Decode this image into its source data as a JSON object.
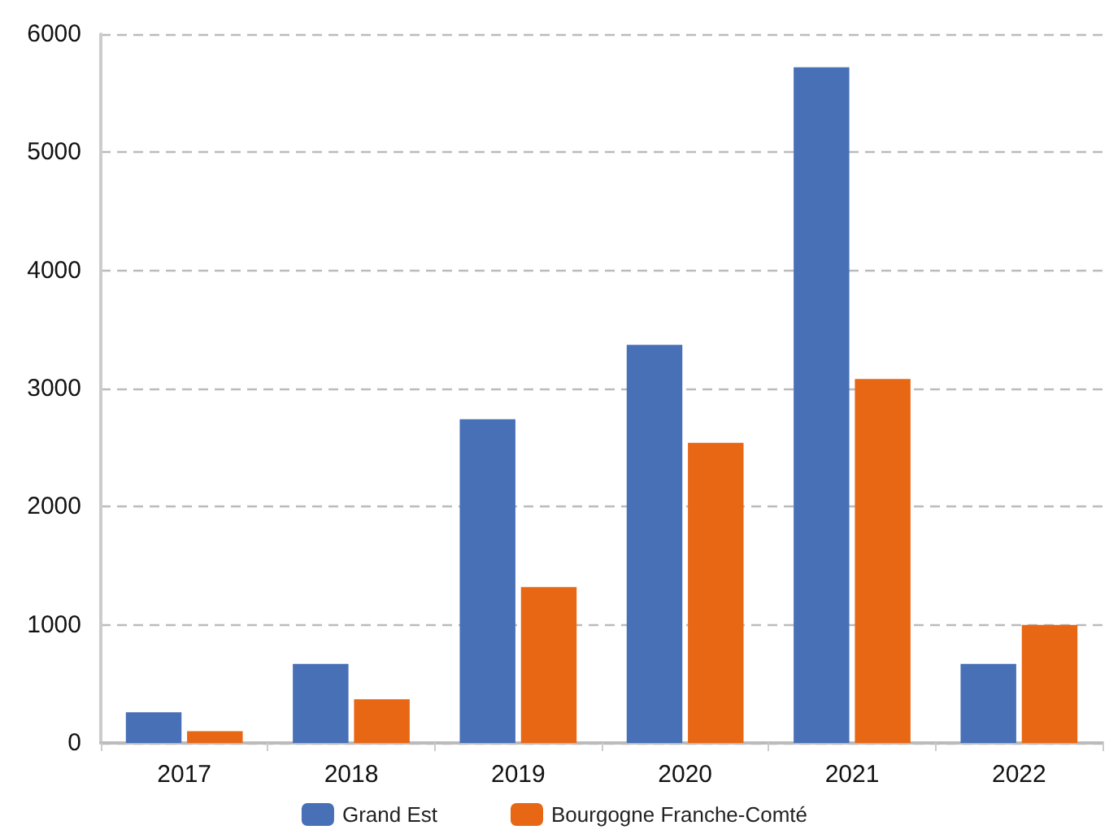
{
  "chart_data": {
    "type": "bar",
    "categories": [
      "2017",
      "2018",
      "2019",
      "2020",
      "2021",
      "2022"
    ],
    "series": [
      {
        "name": "Grand Est",
        "color": "#4770b6",
        "values": [
          260,
          670,
          2740,
          3370,
          5720,
          670
        ]
      },
      {
        "name": "Bourgogne Franche-Comté",
        "color": "#e86714",
        "values": [
          100,
          370,
          1320,
          2540,
          3080,
          1000
        ]
      }
    ],
    "ylim": [
      0,
      6000
    ],
    "yticks": [
      0,
      1000,
      2000,
      3000,
      4000,
      5000,
      6000
    ],
    "grid": "y",
    "legend": "bottom"
  }
}
